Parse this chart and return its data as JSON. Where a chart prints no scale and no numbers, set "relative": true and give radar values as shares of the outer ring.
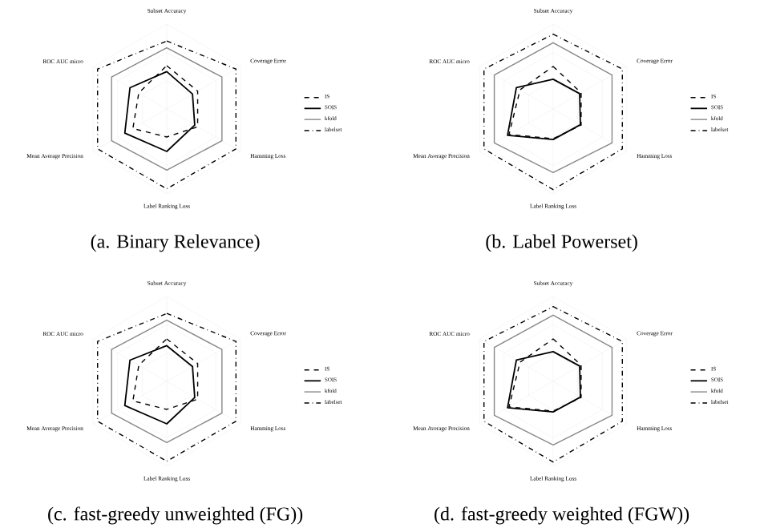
{
  "chart_data": [
    {
      "type": "radar",
      "title": "(a. Binary Relevance)",
      "relative": true,
      "grid": true,
      "legend": "right",
      "categories": [
        "Subset Accuracy",
        "Coverage Error",
        "Hamming Loss",
        "Label Ranking Loss",
        "Mean Average Precision",
        "ROC AUC micro"
      ],
      "series": [
        {
          "name": "IS",
          "color": "#000000",
          "line_style": "dashed",
          "values": [
            0.51,
            0.42,
            0.42,
            0.33,
            0.46,
            0.38
          ]
        },
        {
          "name": "SOIS",
          "color": "#000000",
          "line_style": "solid",
          "values": [
            0.44,
            0.35,
            0.38,
            0.5,
            0.57,
            0.5
          ]
        },
        {
          "name": "kfold",
          "color": "#888888",
          "line_style": "solid",
          "values": [
            0.72,
            0.75,
            0.75,
            0.72,
            0.75,
            0.75
          ]
        },
        {
          "name": "labelset",
          "color": "#000000",
          "line_style": "dashdot",
          "values": [
            0.8,
            0.94,
            0.94,
            0.94,
            0.94,
            0.94
          ]
        }
      ]
    },
    {
      "type": "radar",
      "title": "(b. Label Powerset)",
      "relative": true,
      "grid": true,
      "legend": "right",
      "categories": [
        "Subset Accuracy",
        "Coverage Error",
        "Hamming Loss",
        "Label Ranking Loss",
        "Mean Average Precision",
        "ROC AUC micro"
      ],
      "series": [
        {
          "name": "IS",
          "color": "#000000",
          "line_style": "dashed",
          "values": [
            0.5,
            0.38,
            0.38,
            0.35,
            0.6,
            0.45
          ]
        },
        {
          "name": "SOIS",
          "color": "#000000",
          "line_style": "solid",
          "values": [
            0.35,
            0.36,
            0.37,
            0.36,
            0.62,
            0.5
          ]
        },
        {
          "name": "kfold",
          "color": "#888888",
          "line_style": "solid",
          "values": [
            0.78,
            0.8,
            0.8,
            0.75,
            0.8,
            0.8
          ]
        },
        {
          "name": "labelset",
          "color": "#000000",
          "line_style": "dashdot",
          "values": [
            0.88,
            0.94,
            0.94,
            0.95,
            0.94,
            0.94
          ]
        }
      ]
    },
    {
      "type": "radar",
      "title": "(c. fast-greedy unweighted (FG))",
      "relative": true,
      "grid": true,
      "legend": "right",
      "categories": [
        "Subset Accuracy",
        "Coverage Error",
        "Hamming Loss",
        "Label Ranking Loss",
        "Mean Average Precision",
        "ROC AUC micro"
      ],
      "series": [
        {
          "name": "IS",
          "color": "#000000",
          "line_style": "dashed",
          "values": [
            0.5,
            0.42,
            0.42,
            0.33,
            0.46,
            0.38
          ]
        },
        {
          "name": "SOIS",
          "color": "#000000",
          "line_style": "solid",
          "values": [
            0.42,
            0.35,
            0.38,
            0.5,
            0.57,
            0.5
          ]
        },
        {
          "name": "kfold",
          "color": "#888888",
          "line_style": "solid",
          "values": [
            0.72,
            0.75,
            0.75,
            0.72,
            0.75,
            0.75
          ]
        },
        {
          "name": "labelset",
          "color": "#000000",
          "line_style": "dashdot",
          "values": [
            0.8,
            0.94,
            0.94,
            0.94,
            0.94,
            0.94
          ]
        }
      ]
    },
    {
      "type": "radar",
      "title": "(d. fast-greedy weighted (FGW))",
      "relative": true,
      "grid": true,
      "legend": "right",
      "categories": [
        "Subset Accuracy",
        "Coverage Error",
        "Hamming Loss",
        "Label Ranking Loss",
        "Mean Average Precision",
        "ROC AUC micro"
      ],
      "series": [
        {
          "name": "IS",
          "color": "#000000",
          "line_style": "dashed",
          "values": [
            0.5,
            0.38,
            0.38,
            0.35,
            0.6,
            0.45
          ]
        },
        {
          "name": "SOIS",
          "color": "#000000",
          "line_style": "solid",
          "values": [
            0.35,
            0.36,
            0.37,
            0.36,
            0.62,
            0.5
          ]
        },
        {
          "name": "kfold",
          "color": "#888888",
          "line_style": "solid",
          "values": [
            0.78,
            0.8,
            0.8,
            0.75,
            0.8,
            0.8
          ]
        },
        {
          "name": "labelset",
          "color": "#000000",
          "line_style": "dashdot",
          "values": [
            0.88,
            0.94,
            0.94,
            0.95,
            0.94,
            0.94
          ]
        }
      ]
    }
  ]
}
